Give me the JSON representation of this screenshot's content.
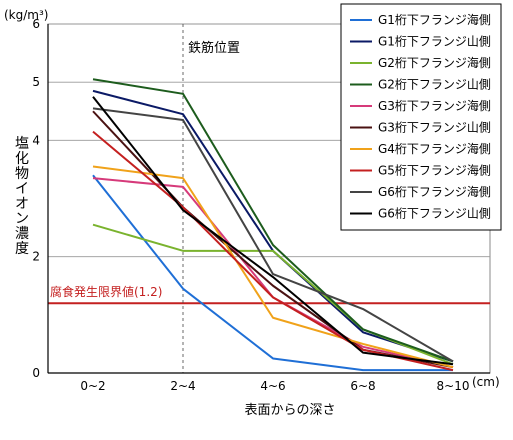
{
  "chart_data": {
    "type": "line",
    "title": "",
    "xlabel": "表面からの深さ",
    "xunit": "(cm)",
    "ylabel": "塩化物イオン濃度",
    "yunit": "(kg/m³)",
    "categories": [
      "0~2",
      "2~4",
      "4~6",
      "6~8",
      "8~10"
    ],
    "ylim": [
      0,
      6
    ],
    "yticks": [
      0,
      2,
      4,
      5,
      6
    ],
    "grid": "horizontal",
    "legend_position": "top-right",
    "series": [
      {
        "name": "G1桁下フランジ海側",
        "color": "#1f6fd6",
        "values": [
          3.4,
          1.45,
          0.25,
          0.05,
          0.05
        ]
      },
      {
        "name": "G1桁下フランジ山側",
        "color": "#0b1a66",
        "values": [
          4.85,
          4.45,
          2.1,
          0.7,
          0.2
        ]
      },
      {
        "name": "G2桁下フランジ海側",
        "color": "#7ab32e",
        "values": [
          2.55,
          2.1,
          2.1,
          0.75,
          0.15
        ]
      },
      {
        "name": "G2桁下フランジ山側",
        "color": "#1d5c1d",
        "values": [
          5.05,
          4.8,
          2.2,
          0.75,
          0.2
        ]
      },
      {
        "name": "G3桁下フランジ海側",
        "color": "#d63a7a",
        "values": [
          3.35,
          3.2,
          1.3,
          0.45,
          0.1
        ]
      },
      {
        "name": "G3桁下フランジ山側",
        "color": "#4a1212",
        "values": [
          4.5,
          2.85,
          1.5,
          0.4,
          0.1
        ]
      },
      {
        "name": "G4桁下フランジ海側",
        "color": "#f0a21a",
        "values": [
          3.55,
          3.35,
          0.95,
          0.5,
          0.1
        ]
      },
      {
        "name": "G5桁下フランジ海側",
        "color": "#c42020",
        "values": [
          4.15,
          2.85,
          1.3,
          0.4,
          0.05
        ]
      },
      {
        "name": "G6桁下フランジ海側",
        "color": "#444444",
        "values": [
          4.55,
          4.35,
          1.7,
          1.1,
          0.2
        ]
      },
      {
        "name": "G6桁下フランジ山側",
        "color": "#000000",
        "values": [
          4.75,
          2.8,
          1.65,
          0.35,
          0.15
        ]
      }
    ],
    "reference_line": {
      "label": "腐食発生限界値(1.2)",
      "value": 1.2,
      "color": "#c42020"
    },
    "annotation": {
      "label": "鉄筋位置",
      "x_category": "2~4"
    }
  }
}
